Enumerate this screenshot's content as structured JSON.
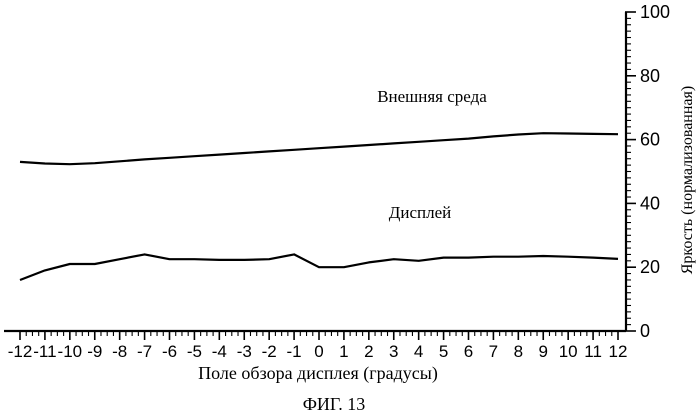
{
  "chart_data": {
    "type": "line",
    "xlabel": "Поле обзора дисплея (градусы)",
    "ylabel": "Яркость (нормализованная)",
    "caption": "ФИГ. 13",
    "xlim": [
      -12,
      12
    ],
    "ylim": [
      0,
      100
    ],
    "x_ticks": [
      -12,
      -11,
      -10,
      -9,
      -8,
      -7,
      -6,
      -5,
      -4,
      -3,
      -2,
      -1,
      0,
      1,
      2,
      3,
      4,
      5,
      6,
      7,
      8,
      9,
      10,
      11,
      12
    ],
    "y_ticks": [
      0,
      20,
      40,
      60,
      80,
      100
    ],
    "y_axis_position": "right",
    "grid": false,
    "series": [
      {
        "name": "Внешняя среда",
        "x": [
          -12,
          -11,
          -10,
          -9,
          -8,
          -7,
          -6,
          -5,
          -4,
          -3,
          -2,
          -1,
          0,
          1,
          2,
          3,
          4,
          5,
          6,
          7,
          8,
          9,
          10,
          11,
          12
        ],
        "y": [
          53,
          52.5,
          52.3,
          52.6,
          53.2,
          53.8,
          54.3,
          54.8,
          55.3,
          55.8,
          56.3,
          56.8,
          57.3,
          57.8,
          58.3,
          58.8,
          59.3,
          59.8,
          60.3,
          61,
          61.6,
          62,
          61.9,
          61.8,
          61.7
        ]
      },
      {
        "name": "Дисплей",
        "x": [
          -12,
          -11,
          -10,
          -9,
          -8,
          -7,
          -6,
          -5,
          -4,
          -3,
          -2,
          -1,
          0,
          1,
          2,
          3,
          4,
          5,
          6,
          7,
          8,
          9,
          10,
          11,
          12
        ],
        "y": [
          16,
          19,
          21,
          21,
          22.5,
          24,
          22.5,
          22.5,
          22.3,
          22.3,
          22.5,
          24,
          20,
          20,
          21.5,
          22.5,
          22,
          23,
          23,
          23.3,
          23.3,
          23.5,
          23.3,
          23,
          22.6
        ]
      }
    ]
  }
}
